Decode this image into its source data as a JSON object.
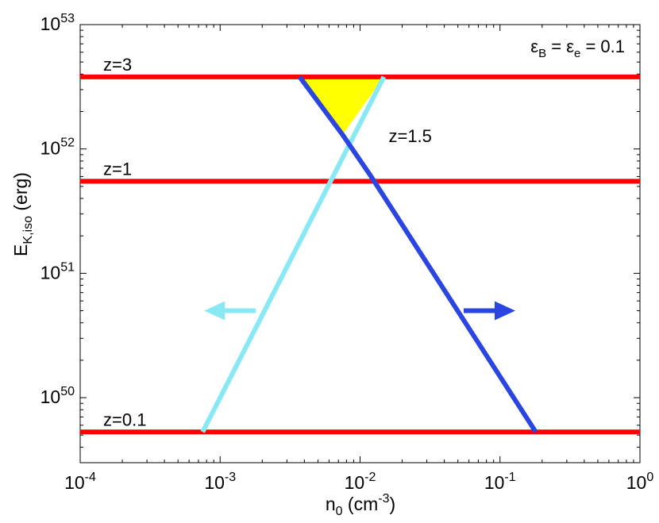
{
  "chart_data": {
    "type": "line",
    "xlabel": {
      "main": "n",
      "sub": "0",
      "rest": " (cm",
      "sup": "-3",
      "close": ")"
    },
    "ylabel": {
      "main": "E",
      "sub": "K,iso",
      "rest": " (erg)"
    },
    "x_scale": "log",
    "y_scale": "log",
    "xlim": [
      0.0001,
      1
    ],
    "ylim": [
      3e+49,
      1e+53
    ],
    "grid": false,
    "x_ticks": [
      {
        "value": 0.0001,
        "base": "10",
        "exp": "-4"
      },
      {
        "value": 0.001,
        "base": "10",
        "exp": "-3"
      },
      {
        "value": 0.01,
        "base": "10",
        "exp": "-2"
      },
      {
        "value": 0.1,
        "base": "10",
        "exp": "-1"
      },
      {
        "value": 1,
        "base": "10",
        "exp": "0"
      }
    ],
    "y_ticks": [
      {
        "value": 1e+50,
        "base": "10",
        "exp": "50"
      },
      {
        "value": 1e+51,
        "base": "10",
        "exp": "51"
      },
      {
        "value": 1e+52,
        "base": "10",
        "exp": "52"
      },
      {
        "value": 1e+53,
        "base": "10",
        "exp": "53"
      }
    ],
    "annotation": {
      "eps_b": "ε",
      "eps_b_sub": "B",
      "mid": " = ",
      "eps_e": "ε",
      "eps_e_sub": "e",
      "value": " = 0.1"
    },
    "redshift_lines": [
      {
        "label": "z=3",
        "y": 3.8e+52
      },
      {
        "label": "z=1",
        "y": 5.5e+51
      },
      {
        "label": "z=0.1",
        "y": 5.3e+49
      }
    ],
    "series": [
      {
        "color": "#88e8f4",
        "x": [
          0.00075,
          0.0148
        ],
        "y": [
          5.3e+49,
          3.8e+52
        ],
        "arrow": {
          "at_x": 0.0018,
          "at_y": 5e+50,
          "direction": "left"
        }
      },
      {
        "color": "#2a45e0",
        "x": [
          0.0037,
          0.0075,
          0.012,
          0.18
        ],
        "y": [
          3.8e+52,
          1.3e+52,
          6e+51,
          5.3e+49
        ],
        "arrow": {
          "at_x": 0.055,
          "at_y": 5e+50,
          "direction": "right"
        }
      }
    ],
    "region": {
      "fill": "#ffff00",
      "label": "z=1.5",
      "label_x": 0.016,
      "label_y": 1.28e+52
    },
    "colors": {
      "redshift": "#ff0000",
      "region_fill": "#ffff00"
    }
  }
}
